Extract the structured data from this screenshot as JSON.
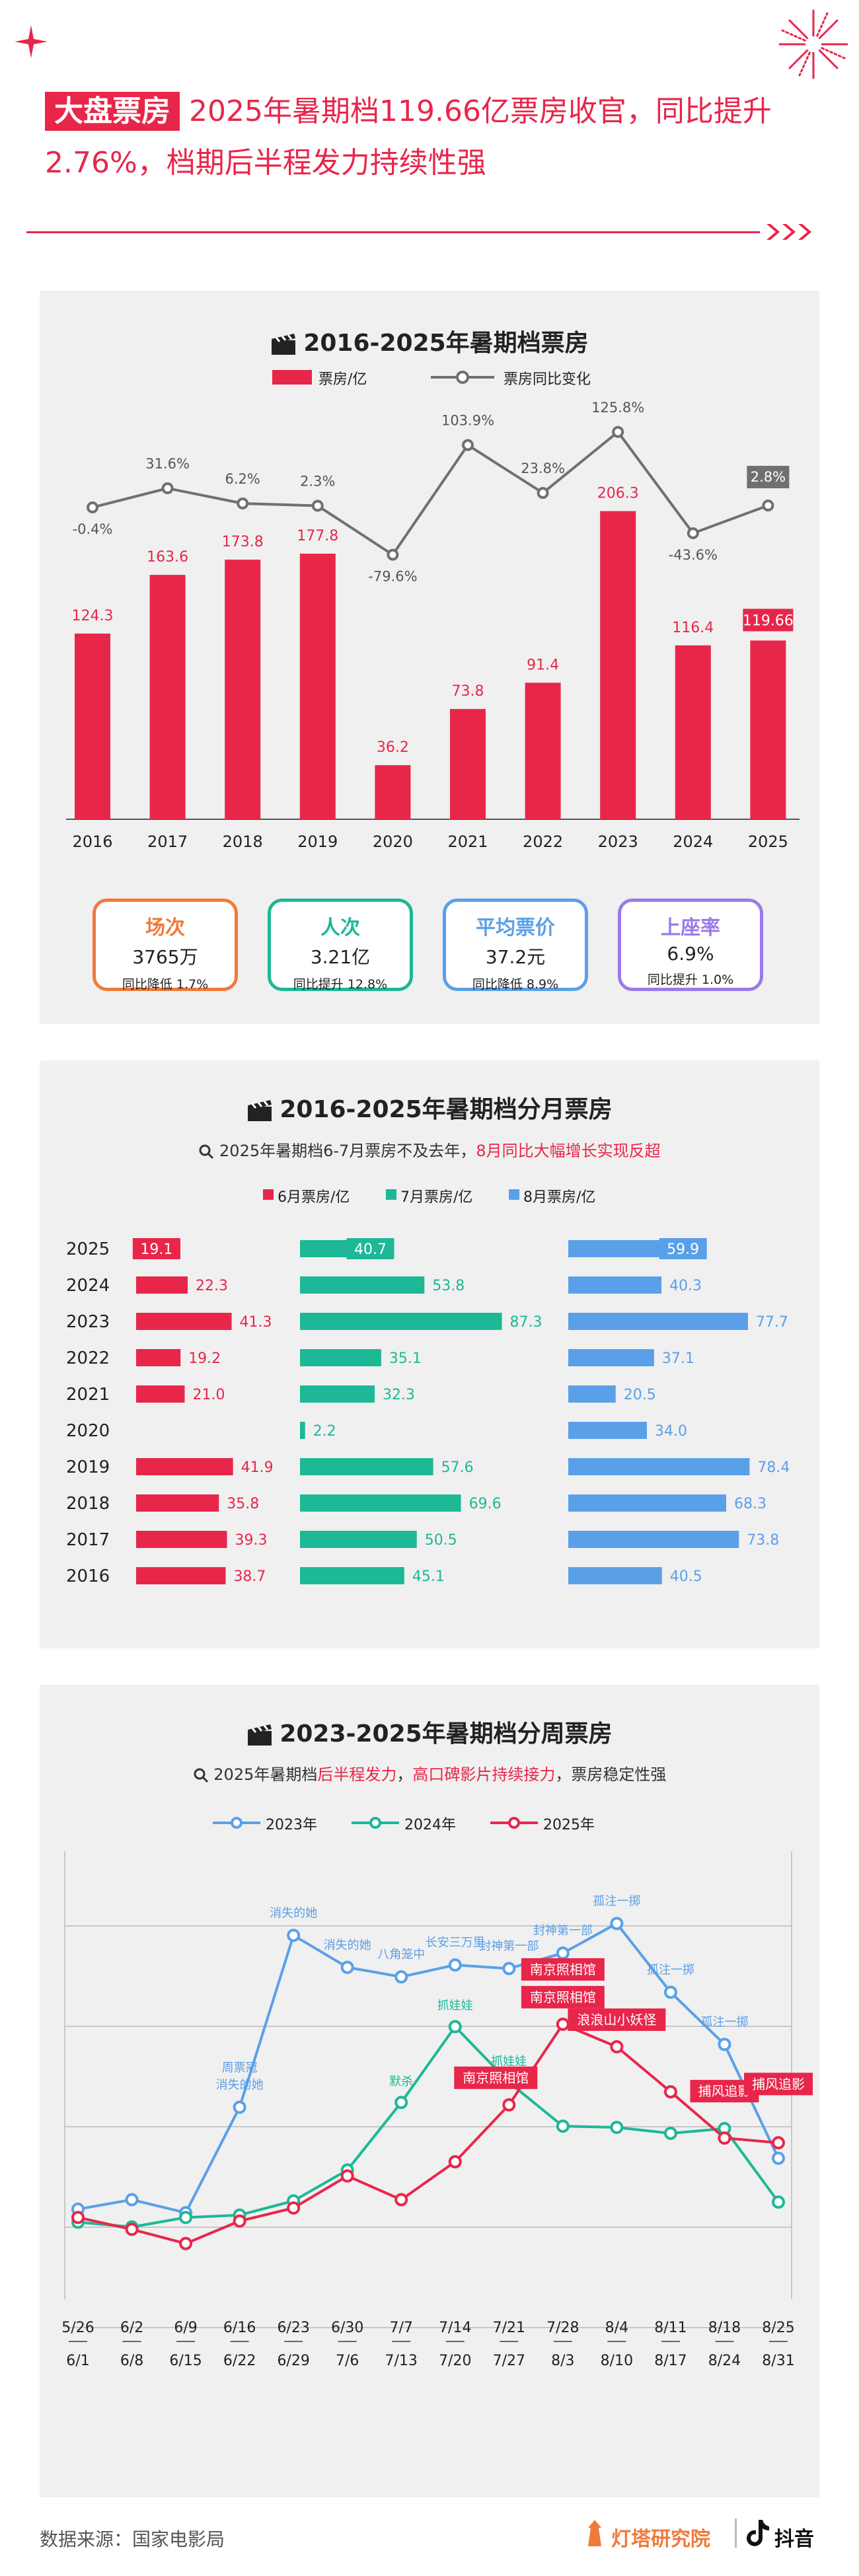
{
  "header": {
    "tag": "大盘票房",
    "headline": "2025年暑期档119.66亿票房收官，同比提升2.76%，档期后半程发力持续性强"
  },
  "colors": {
    "accent": "#e8264a",
    "grey_line": "#707070",
    "teal": "#1db896",
    "blue": "#5aa0e8",
    "orange": "#f07a3a",
    "purple": "#9a7be8"
  },
  "chart_data": [
    {
      "type": "bar",
      "title": "2016-2025年暑期档票房",
      "categories": [
        "2016",
        "2017",
        "2018",
        "2019",
        "2020",
        "2021",
        "2022",
        "2023",
        "2024",
        "2025"
      ],
      "series": [
        {
          "name": "票房/亿",
          "type": "bar",
          "values": [
            124.3,
            163.6,
            173.8,
            177.8,
            36.2,
            73.8,
            91.4,
            206.3,
            116.4,
            119.66
          ],
          "labels": [
            "124.3",
            "163.6",
            "173.8",
            "177.8",
            "36.2",
            "73.8",
            "91.4",
            "206.3",
            "116.4",
            "119.66"
          ]
        },
        {
          "name": "票房同比变化",
          "type": "line",
          "values": [
            -0.4,
            31.6,
            6.2,
            2.3,
            -79.6,
            103.9,
            23.8,
            125.8,
            -43.6,
            2.8
          ],
          "labels": [
            "-0.4%",
            "31.6%",
            "6.2%",
            "2.3%",
            "-79.6%",
            "103.9%",
            "23.8%",
            "125.8%",
            "-43.6%",
            "2.8%"
          ]
        }
      ],
      "ylim": [
        0,
        230
      ]
    },
    {
      "type": "bar",
      "title": "2016-2025年暑期档分月票房",
      "subtitle_plain": "2025年暑期档6-7月票房不及去年，",
      "subtitle_highlight": "8月同比大幅增长实现反超",
      "categories": [
        "2025",
        "2024",
        "2023",
        "2022",
        "2021",
        "2020",
        "2019",
        "2018",
        "2017",
        "2016"
      ],
      "series": [
        {
          "name": "6月票房/亿",
          "values": [
            19.1,
            22.3,
            41.3,
            19.2,
            21.0,
            0,
            41.9,
            35.8,
            39.3,
            38.7
          ],
          "labels": [
            "19.1",
            "22.3",
            "41.3",
            "19.2",
            "21.0",
            "",
            "41.9",
            "35.8",
            "39.3",
            "38.7"
          ]
        },
        {
          "name": "7月票房/亿",
          "values": [
            40.7,
            53.8,
            87.3,
            35.1,
            32.3,
            2.2,
            57.6,
            69.6,
            50.5,
            45.1
          ],
          "labels": [
            "40.7",
            "53.8",
            "87.3",
            "35.1",
            "32.3",
            "2.2",
            "57.6",
            "69.6",
            "50.5",
            "45.1"
          ]
        },
        {
          "name": "8月票房/亿",
          "values": [
            59.9,
            40.3,
            77.7,
            37.1,
            20.5,
            34.0,
            78.4,
            68.3,
            73.8,
            40.5
          ],
          "labels": [
            "59.9",
            "40.3",
            "77.7",
            "37.1",
            "20.5",
            "34.0",
            "78.4",
            "68.3",
            "73.8",
            "40.5"
          ]
        }
      ]
    },
    {
      "type": "line",
      "title": "2023-2025年暑期档分周票房",
      "subtitle_plain1": "2025年暑期档",
      "subtitle_highlight1": "后半程发力",
      "subtitle_plain2": "，",
      "subtitle_highlight2": "高口碑影片持续接力",
      "subtitle_plain3": "，票房稳定性强",
      "x_top": [
        "5/26",
        "6/2",
        "6/9",
        "6/16",
        "6/23",
        "6/30",
        "7/7",
        "7/14",
        "7/21",
        "7/28",
        "8/4",
        "8/11",
        "8/18",
        "8/25"
      ],
      "x_bottom": [
        "6/1",
        "6/8",
        "6/15",
        "6/22",
        "6/29",
        "7/6",
        "7/13",
        "7/20",
        "7/27",
        "8/3",
        "8/10",
        "8/17",
        "8/24",
        "8/31"
      ],
      "ylim": [
        0,
        34
      ],
      "series": [
        {
          "name": "2023年",
          "values": [
            6.2,
            7.0,
            5.9,
            14.8,
            29.3,
            26.6,
            25.8,
            26.8,
            26.5,
            27.8,
            30.3,
            24.5,
            20.1,
            10.5
          ],
          "annotations": [
            "",
            "",
            "",
            "周票冠 消失的她",
            "消失的她",
            "消失的她",
            "八角笼中",
            "长安三万里",
            "封神第一部",
            "封神第一部",
            "孤注一掷",
            "孤注一掷",
            "孤注一掷",
            ""
          ]
        },
        {
          "name": "2024年",
          "values": [
            5.1,
            4.7,
            5.5,
            5.7,
            6.9,
            9.5,
            15.2,
            21.6,
            16.9,
            13.2,
            13.1,
            12.6,
            13.0,
            6.8
          ],
          "annotations": [
            "",
            "",
            "",
            "",
            "",
            "",
            "默杀",
            "抓娃娃",
            "抓娃娃",
            "",
            "",
            "",
            "",
            ""
          ]
        },
        {
          "name": "2025年",
          "values": [
            5.5,
            4.5,
            3.3,
            5.2,
            6.3,
            9.0,
            7.0,
            10.2,
            15.0,
            21.8,
            19.9,
            16.1,
            12.2,
            11.8
          ],
          "annotations": [
            "",
            "",
            "",
            "",
            "",
            "",
            "",
            "",
            "南京照相馆",
            "南京照相馆 南京照相馆",
            "浪浪山小妖怪",
            "",
            "捕风追影",
            "捕风追影"
          ]
        }
      ]
    }
  ],
  "chart1_legend": {
    "bar": "票房/亿",
    "line": "票房同比变化"
  },
  "chart2_legend": {
    "jun": "6月票房/亿",
    "jul": "7月票房/亿",
    "aug": "8月票房/亿"
  },
  "chart3_legend": {
    "y2023": "2023年",
    "y2024": "2024年",
    "y2025": "2025年"
  },
  "kpis": [
    {
      "title": "场次",
      "value": "3765万",
      "sub": "同比降低 1.7%",
      "color": "#f07a3a"
    },
    {
      "title": "人次",
      "value": "3.21亿",
      "sub": "同比提升 12.8%",
      "color": "#1db896"
    },
    {
      "title": "平均票价",
      "value": "37.2元",
      "sub": "同比降低 8.9%",
      "color": "#5aa0e8"
    },
    {
      "title": "上座率",
      "value": "6.9%",
      "sub": "同比提升 1.0%",
      "color": "#9a7be8"
    }
  ],
  "footer": {
    "source": "数据来源：国家电影局",
    "brand1": "灯塔研究院",
    "brand2": "抖音"
  }
}
